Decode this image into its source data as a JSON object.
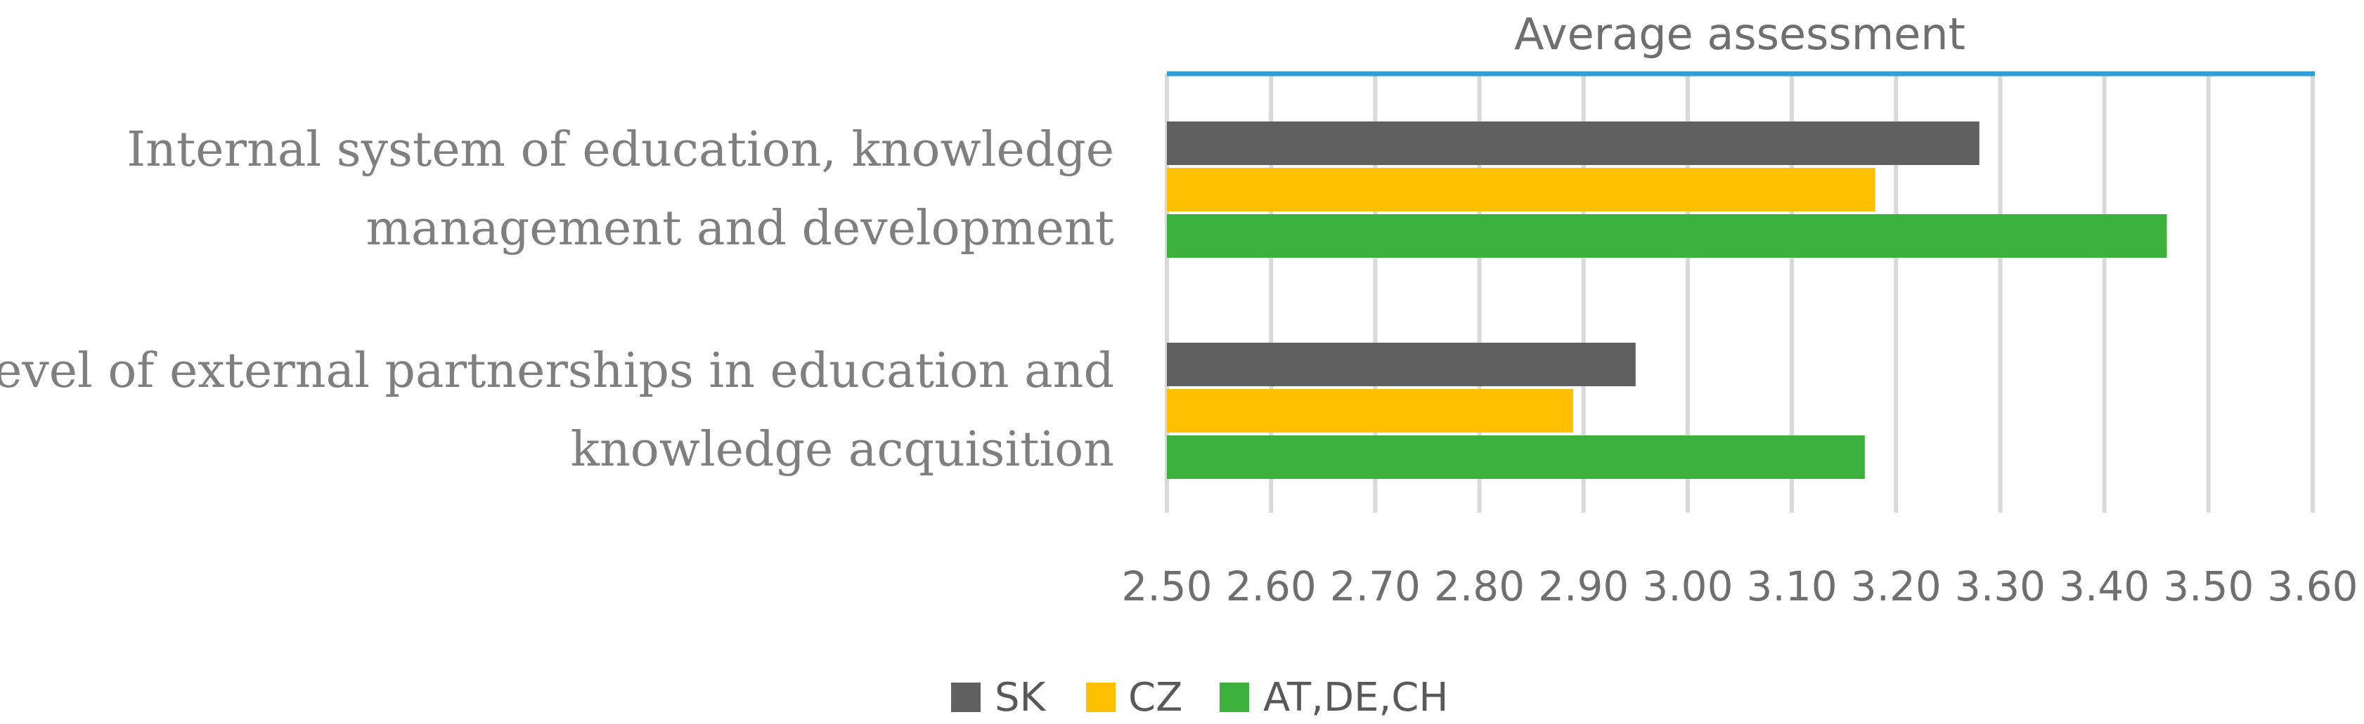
{
  "chart_data": {
    "type": "bar",
    "orientation": "horizontal",
    "title": "",
    "xlabel": "Average assessment",
    "ylabel": "",
    "categories": [
      [
        "Internal system of education, knowledge",
        "management and development"
      ],
      [
        "Level of external partnerships in education and",
        "knowledge acquisition"
      ]
    ],
    "series": [
      {
        "name": "SK",
        "color": "#606060",
        "values": [
          3.28,
          2.95
        ]
      },
      {
        "name": "CZ",
        "color": "#ffc000",
        "values": [
          3.18,
          2.89
        ]
      },
      {
        "name": "AT,DE,CH",
        "color": "#3cb23c",
        "values": [
          3.46,
          3.17
        ]
      }
    ],
    "xlim": [
      2.5,
      3.6
    ],
    "ticks": [
      "2.50",
      "2.60",
      "2.70",
      "2.80",
      "2.90",
      "3.00",
      "3.10",
      "3.20",
      "3.30",
      "3.40",
      "3.50",
      "3.60"
    ],
    "grid": true,
    "axis_position": "top",
    "axis_color": "#2f9fd6",
    "legend_position": "bottom"
  }
}
